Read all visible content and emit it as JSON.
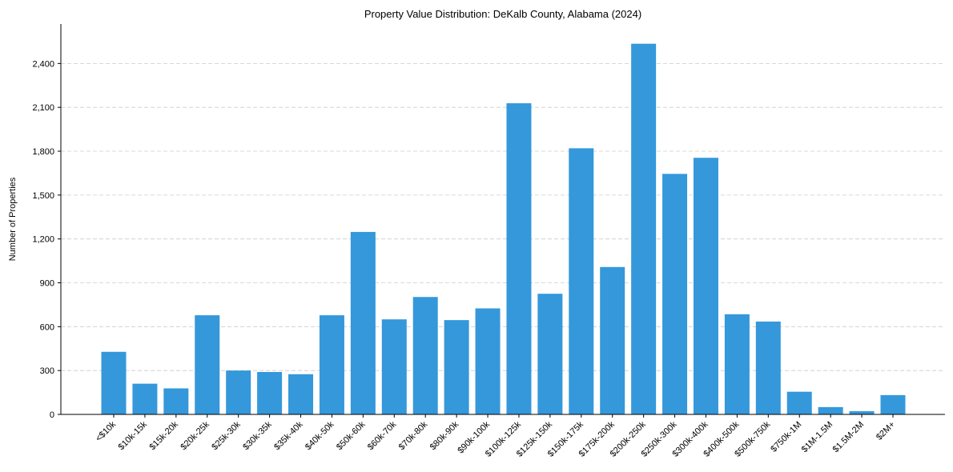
{
  "chart_data": {
    "type": "bar",
    "title": "Property Value Distribution: DeKalb County, Alabama (2024)",
    "xlabel": "",
    "ylabel": "Number of Properties",
    "ylim": [
      0,
      2670
    ],
    "yticks": [
      0,
      300,
      600,
      900,
      1200,
      1500,
      1800,
      2100,
      2400
    ],
    "ytick_labels": [
      "0",
      "300",
      "600",
      "900",
      "1,200",
      "1,500",
      "1,800",
      "2,100",
      "2,400"
    ],
    "grid": "y-dashed",
    "color": "#3498db",
    "categories": [
      "<$10k",
      "$10k-15k",
      "$15k-20k",
      "$20k-25k",
      "$25k-30k",
      "$30k-35k",
      "$35k-40k",
      "$40k-50k",
      "$50k-60k",
      "$60k-70k",
      "$70k-80k",
      "$80k-90k",
      "$90k-100k",
      "$100k-125k",
      "$125k-150k",
      "$150k-175k",
      "$175k-200k",
      "$200k-250k",
      "$250k-300k",
      "$300k-400k",
      "$400k-500k",
      "$500k-750k",
      "$750k-1M",
      "$1M-1.5M",
      "$1.5M-2M",
      "$2M+"
    ],
    "values": [
      428,
      210,
      178,
      678,
      300,
      290,
      275,
      678,
      1248,
      650,
      803,
      645,
      725,
      2128,
      825,
      1820,
      1008,
      2535,
      1645,
      1755,
      685,
      635,
      155,
      50,
      22,
      132
    ]
  }
}
